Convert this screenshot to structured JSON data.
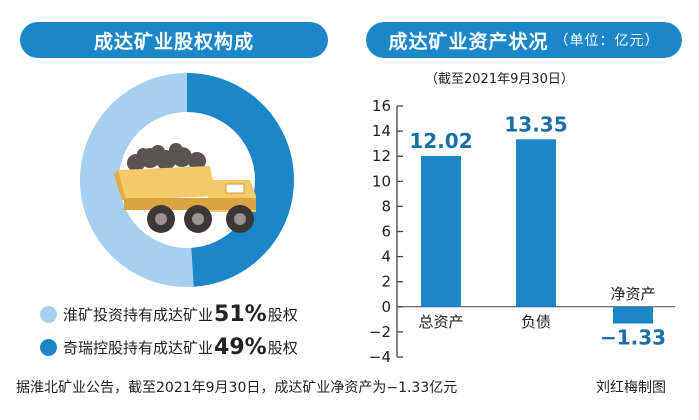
{
  "left_panel": {
    "title": "成达矿业股权构成",
    "legend": [
      {
        "text_before": "淮矿投资持有成达矿业",
        "percent": "51%",
        "text_after": "股权",
        "color": "#a6cff0"
      },
      {
        "text_before": "奇瑞控股持有成达矿业",
        "percent": "49%",
        "text_after": "股权",
        "color": "#1b87c8"
      }
    ]
  },
  "right_panel": {
    "title": "成达矿业资产状况",
    "unit": "（单位：亿元）",
    "date_note": "（截至2021年9月30日）"
  },
  "footer": {
    "source": "据淮北矿业公告，截至2021年9月30日，成达矿业净资产为−1.33亿元",
    "credit": "刘红梅制图"
  },
  "colors": {
    "accent": "#1b87c8",
    "light": "#a6cff0",
    "truck": "#f4c96a"
  },
  "chart_data": [
    {
      "type": "pie",
      "donut": true,
      "slices": [
        {
          "label": "淮矿投资",
          "value": 51,
          "color": "#a6cff0"
        },
        {
          "label": "奇瑞控股",
          "value": 49,
          "color": "#1b87c8"
        }
      ]
    },
    {
      "type": "bar",
      "categories": [
        "总资产",
        "负债",
        "净资产"
      ],
      "values": [
        12.02,
        13.35,
        -1.33
      ],
      "labels": [
        "12.02",
        "13.35",
        "−1.33"
      ],
      "ylim": [
        -4,
        16
      ],
      "yticks": [
        16,
        14,
        12,
        10,
        8,
        6,
        4,
        2,
        0,
        -2,
        -4
      ],
      "ytick_labels": [
        "16",
        "14",
        "12",
        "10",
        "8",
        "6",
        "4",
        "2",
        "0",
        "−2",
        "−4"
      ],
      "bar_color": "#1b87c8",
      "grid": false
    }
  ]
}
